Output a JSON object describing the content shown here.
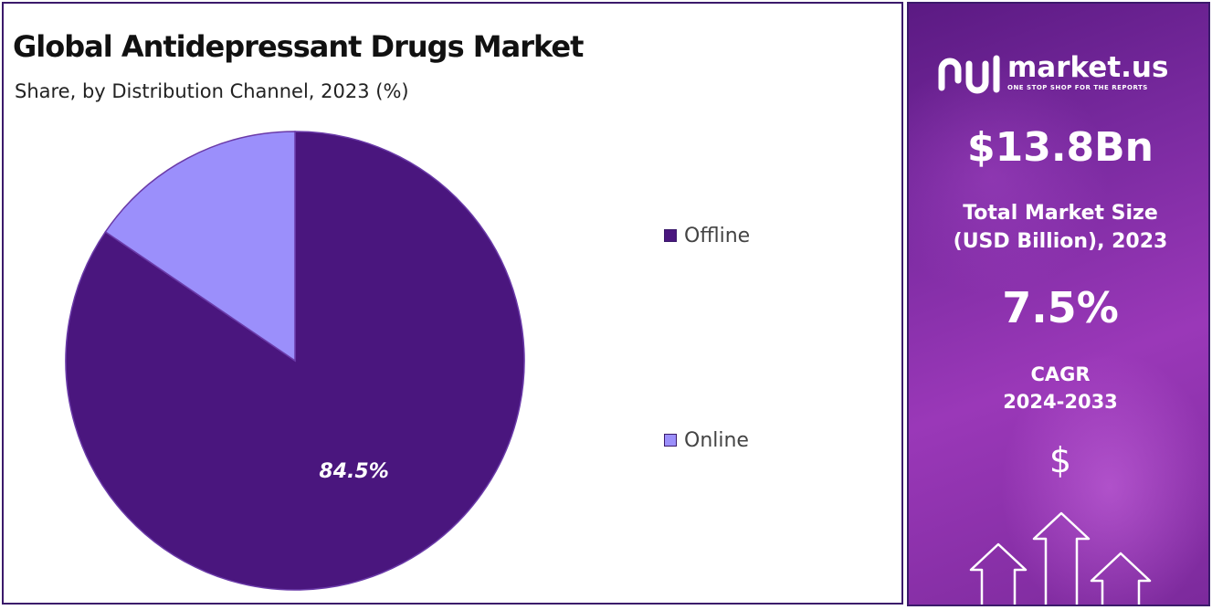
{
  "chart_data": {
    "type": "pie",
    "title": "Global Antidepressant Drugs Market",
    "subtitle": "Share, by Distribution Channel, 2023 (%)",
    "slices": [
      {
        "name": "Offline",
        "value": 84.5,
        "label": "84.5%",
        "color": "#4a167e"
      },
      {
        "name": "Online",
        "value": 15.5,
        "label": "",
        "color": "#9b8ffb"
      }
    ]
  },
  "sidebar": {
    "brand_name": "market.us",
    "brand_tagline": "ONE STOP SHOP FOR THE REPORTS",
    "market_size_value": "$13.8Bn",
    "market_size_label_line1": "Total Market Size",
    "market_size_label_line2": "(USD Billion), 2023",
    "cagr_value": "7.5%",
    "cagr_label_line1": "CAGR",
    "cagr_label_line2": "2024-2033",
    "dollar_symbol": "$",
    "icons": [
      "market-us-logo-icon",
      "dollar-icon",
      "growth-arrows-icon"
    ]
  }
}
